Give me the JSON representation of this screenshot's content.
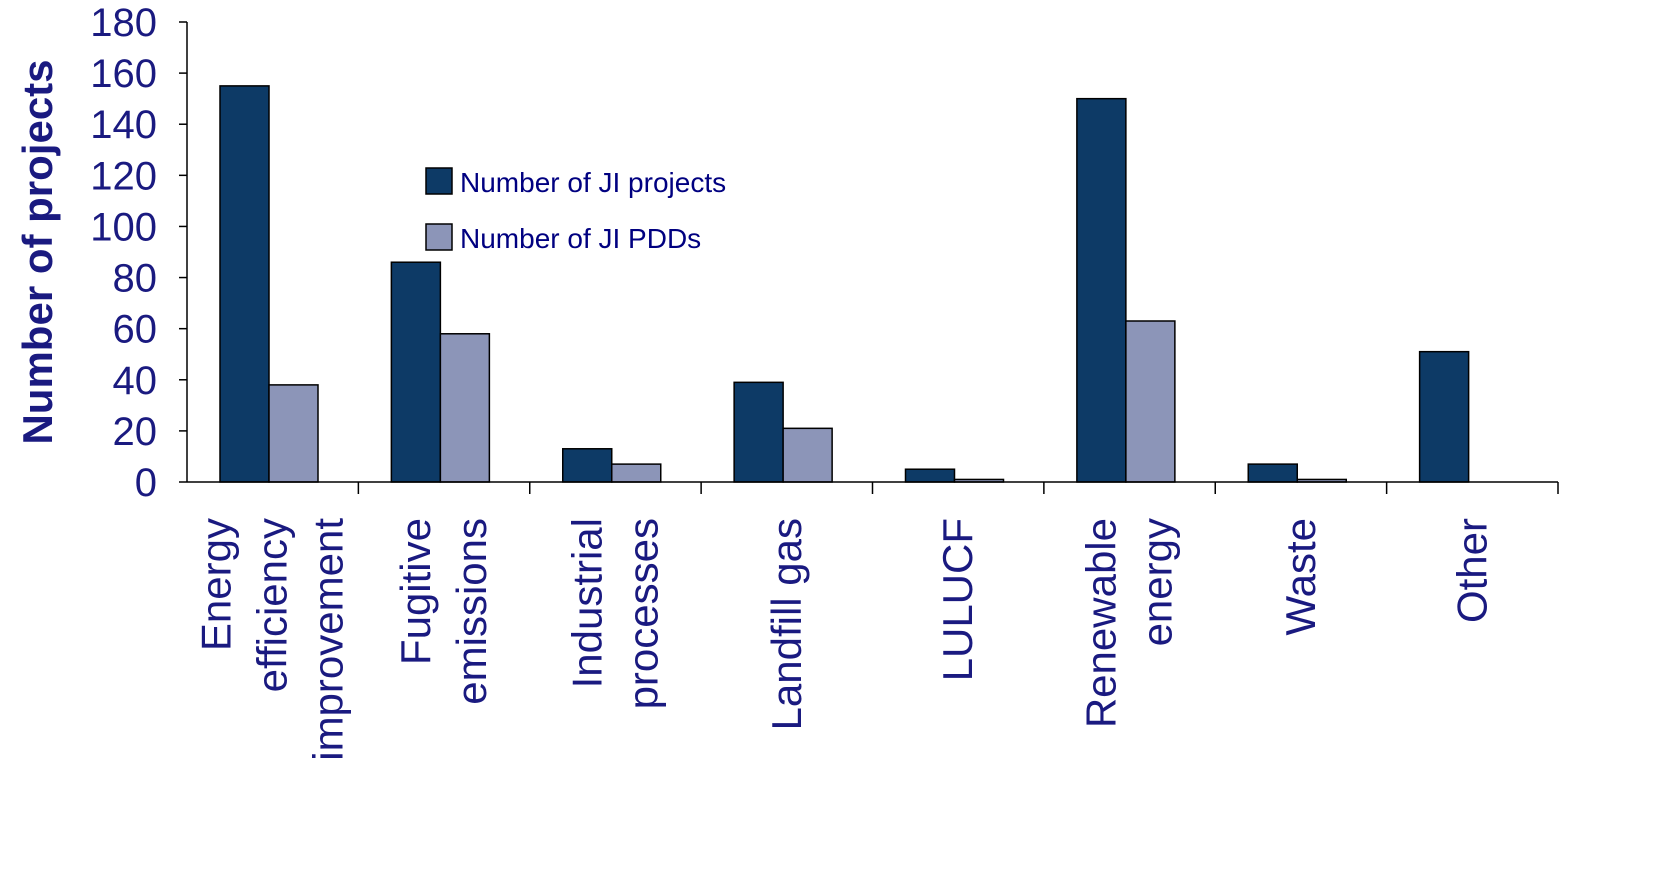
{
  "chart_data": {
    "type": "bar",
    "title": "",
    "xlabel": "",
    "ylabel": "Number of projects",
    "ylim": [
      0,
      180
    ],
    "yticks": [
      0,
      20,
      40,
      60,
      80,
      100,
      120,
      140,
      160,
      180
    ],
    "grid": false,
    "legend_position": "center-left",
    "categories": [
      [
        "Energy",
        "efficiency",
        "improvement"
      ],
      [
        "Fugitive",
        "emissions"
      ],
      [
        "Industrial",
        "processes"
      ],
      [
        "Landfill gas"
      ],
      [
        "LULUCF"
      ],
      [
        "Renewable",
        "energy"
      ],
      [
        "Waste"
      ],
      [
        "Other"
      ]
    ],
    "series": [
      {
        "name": "Number of JI projects",
        "color": "#0d3a66",
        "values": [
          155,
          86,
          13,
          39,
          5,
          150,
          7,
          51
        ]
      },
      {
        "name": "Number of JI PDDs",
        "color": "#8c95b8",
        "values": [
          38,
          58,
          7,
          21,
          1,
          63,
          1,
          0
        ]
      }
    ]
  }
}
